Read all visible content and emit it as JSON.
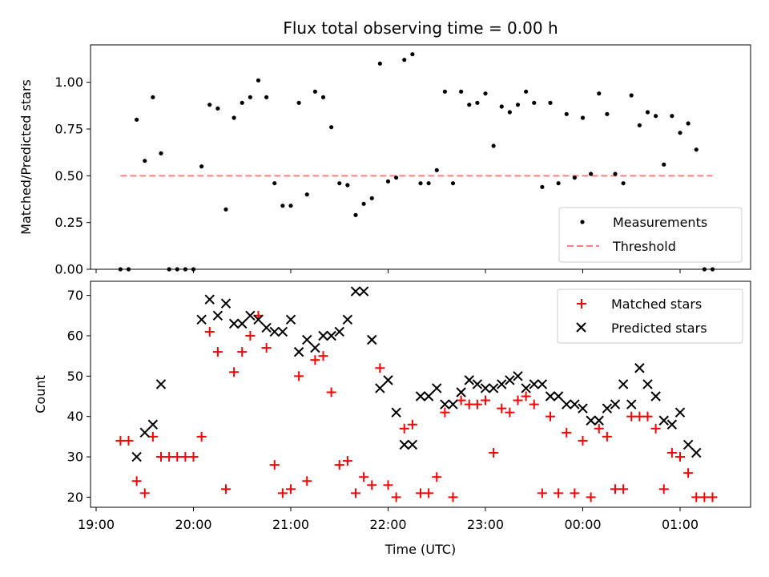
{
  "chart_data": [
    {
      "type": "scatter",
      "title": "Flux total observing time = 0.00 h",
      "xlabel": "",
      "ylabel": "Matched/Predicted stars",
      "xlim": [
        "19:00",
        "01:40"
      ],
      "ylim": [
        0,
        1.2
      ],
      "yticks": [
        "0.00",
        "0.25",
        "0.50",
        "0.75",
        "1.00"
      ],
      "legend": {
        "placement": "lower-right",
        "entries": [
          "Measurements",
          "Threshold"
        ]
      },
      "series": [
        {
          "name": "Measurements",
          "color": "#000000",
          "marker": "dot",
          "points": [
            [
              "19:15",
              0.0
            ],
            [
              "19:20",
              0.0
            ],
            [
              "19:25",
              0.8
            ],
            [
              "19:30",
              0.58
            ],
            [
              "19:35",
              0.92
            ],
            [
              "19:40",
              0.62
            ],
            [
              "19:45",
              0.0
            ],
            [
              "19:50",
              0.0
            ],
            [
              "19:55",
              0.0
            ],
            [
              "20:00",
              0.0
            ],
            [
              "20:05",
              0.55
            ],
            [
              "20:10",
              0.88
            ],
            [
              "20:15",
              0.86
            ],
            [
              "20:20",
              0.32
            ],
            [
              "20:25",
              0.81
            ],
            [
              "20:30",
              0.89
            ],
            [
              "20:35",
              0.92
            ],
            [
              "20:40",
              1.01
            ],
            [
              "20:45",
              0.92
            ],
            [
              "20:50",
              0.46
            ],
            [
              "20:55",
              0.34
            ],
            [
              "21:00",
              0.34
            ],
            [
              "21:05",
              0.89
            ],
            [
              "21:10",
              0.4
            ],
            [
              "21:15",
              0.95
            ],
            [
              "21:20",
              0.92
            ],
            [
              "21:25",
              0.76
            ],
            [
              "21:30",
              0.46
            ],
            [
              "21:35",
              0.45
            ],
            [
              "21:40",
              0.29
            ],
            [
              "21:45",
              0.35
            ],
            [
              "21:50",
              0.38
            ],
            [
              "21:55",
              1.1
            ],
            [
              "22:00",
              0.47
            ],
            [
              "22:05",
              0.49
            ],
            [
              "22:10",
              1.12
            ],
            [
              "22:15",
              1.15
            ],
            [
              "22:20",
              0.46
            ],
            [
              "22:25",
              0.46
            ],
            [
              "22:30",
              0.53
            ],
            [
              "22:35",
              0.95
            ],
            [
              "22:40",
              0.46
            ],
            [
              "22:45",
              0.95
            ],
            [
              "22:50",
              0.88
            ],
            [
              "22:55",
              0.89
            ],
            [
              "23:00",
              0.94
            ],
            [
              "23:05",
              0.66
            ],
            [
              "23:10",
              0.87
            ],
            [
              "23:15",
              0.84
            ],
            [
              "23:20",
              0.88
            ],
            [
              "23:25",
              0.95
            ],
            [
              "23:30",
              0.89
            ],
            [
              "23:35",
              0.44
            ],
            [
              "23:40",
              0.89
            ],
            [
              "23:45",
              0.46
            ],
            [
              "23:50",
              0.83
            ],
            [
              "23:55",
              0.49
            ],
            [
              "00:00",
              0.81
            ],
            [
              "00:05",
              0.51
            ],
            [
              "00:10",
              0.94
            ],
            [
              "00:15",
              0.83
            ],
            [
              "00:20",
              0.51
            ],
            [
              "00:25",
              0.46
            ],
            [
              "00:30",
              0.93
            ],
            [
              "00:35",
              0.77
            ],
            [
              "00:40",
              0.84
            ],
            [
              "00:45",
              0.82
            ],
            [
              "00:50",
              0.56
            ],
            [
              "00:55",
              0.82
            ],
            [
              "01:00",
              0.73
            ],
            [
              "01:05",
              0.78
            ],
            [
              "01:10",
              0.64
            ],
            [
              "01:15",
              0.0
            ],
            [
              "01:20",
              0.0
            ]
          ]
        },
        {
          "name": "Threshold",
          "color": "#ff7f7f",
          "style": "dashed",
          "points": [
            [
              "19:15",
              0.5
            ],
            [
              "01:20",
              0.5
            ]
          ]
        }
      ]
    },
    {
      "type": "scatter",
      "title": "",
      "xlabel": "Time (UTC)",
      "ylabel": "Count",
      "xlim": [
        "19:00",
        "01:40"
      ],
      "ylim": [
        17.5,
        73.5
      ],
      "xticks": [
        "19:00",
        "20:00",
        "21:00",
        "22:00",
        "23:00",
        "00:00",
        "01:00"
      ],
      "yticks": [
        "20",
        "30",
        "40",
        "50",
        "60",
        "70"
      ],
      "legend": {
        "placement": "upper-right",
        "entries": [
          "Matched stars",
          "Predicted stars"
        ]
      },
      "series": [
        {
          "name": "Matched stars",
          "color": "#ff0000",
          "marker": "plus",
          "points": [
            [
              "19:15",
              34
            ],
            [
              "19:20",
              34
            ],
            [
              "19:25",
              24
            ],
            [
              "19:30",
              21
            ],
            [
              "19:35",
              35
            ],
            [
              "19:40",
              30
            ],
            [
              "19:45",
              30
            ],
            [
              "19:50",
              30
            ],
            [
              "19:55",
              30
            ],
            [
              "20:00",
              30
            ],
            [
              "20:05",
              35
            ],
            [
              "20:10",
              61
            ],
            [
              "20:15",
              56
            ],
            [
              "20:20",
              22
            ],
            [
              "20:25",
              51
            ],
            [
              "20:30",
              56
            ],
            [
              "20:35",
              60
            ],
            [
              "20:40",
              65
            ],
            [
              "20:45",
              57
            ],
            [
              "20:50",
              28
            ],
            [
              "20:55",
              21
            ],
            [
              "21:00",
              22
            ],
            [
              "21:05",
              50
            ],
            [
              "21:10",
              24
            ],
            [
              "21:15",
              54
            ],
            [
              "21:20",
              55
            ],
            [
              "21:25",
              46
            ],
            [
              "21:30",
              28
            ],
            [
              "21:35",
              29
            ],
            [
              "21:40",
              21
            ],
            [
              "21:45",
              25
            ],
            [
              "21:50",
              23
            ],
            [
              "21:55",
              52
            ],
            [
              "22:00",
              23
            ],
            [
              "22:05",
              20
            ],
            [
              "22:10",
              37
            ],
            [
              "22:15",
              38
            ],
            [
              "22:20",
              21
            ],
            [
              "22:25",
              21
            ],
            [
              "22:30",
              25
            ],
            [
              "22:35",
              41
            ],
            [
              "22:40",
              20
            ],
            [
              "22:45",
              44
            ],
            [
              "22:50",
              43
            ],
            [
              "22:55",
              43
            ],
            [
              "23:00",
              44
            ],
            [
              "23:05",
              31
            ],
            [
              "23:10",
              42
            ],
            [
              "23:15",
              41
            ],
            [
              "23:20",
              44
            ],
            [
              "23:25",
              45
            ],
            [
              "23:30",
              43
            ],
            [
              "23:35",
              21
            ],
            [
              "23:40",
              40
            ],
            [
              "23:45",
              21
            ],
            [
              "23:50",
              36
            ],
            [
              "23:55",
              21
            ],
            [
              "00:00",
              34
            ],
            [
              "00:05",
              20
            ],
            [
              "00:10",
              37
            ],
            [
              "00:15",
              35
            ],
            [
              "00:20",
              22
            ],
            [
              "00:25",
              22
            ],
            [
              "00:30",
              40
            ],
            [
              "00:35",
              40
            ],
            [
              "00:40",
              40
            ],
            [
              "00:45",
              37
            ],
            [
              "00:50",
              22
            ],
            [
              "00:55",
              31
            ],
            [
              "01:00",
              30
            ],
            [
              "01:05",
              26
            ],
            [
              "01:10",
              20
            ],
            [
              "01:15",
              20
            ],
            [
              "01:20",
              20
            ]
          ]
        },
        {
          "name": "Predicted stars",
          "color": "#000000",
          "marker": "x",
          "points": [
            [
              "19:25",
              30
            ],
            [
              "19:30",
              36
            ],
            [
              "19:35",
              38
            ],
            [
              "19:40",
              48
            ],
            [
              "20:05",
              64
            ],
            [
              "20:10",
              69
            ],
            [
              "20:15",
              65
            ],
            [
              "20:20",
              68
            ],
            [
              "20:25",
              63
            ],
            [
              "20:30",
              63
            ],
            [
              "20:35",
              65
            ],
            [
              "20:40",
              64
            ],
            [
              "20:45",
              62
            ],
            [
              "20:50",
              61
            ],
            [
              "20:55",
              61
            ],
            [
              "21:00",
              64
            ],
            [
              "21:05",
              56
            ],
            [
              "21:10",
              59
            ],
            [
              "21:15",
              57
            ],
            [
              "21:20",
              60
            ],
            [
              "21:25",
              60
            ],
            [
              "21:30",
              61
            ],
            [
              "21:35",
              64
            ],
            [
              "21:40",
              71
            ],
            [
              "21:45",
              71
            ],
            [
              "21:50",
              59
            ],
            [
              "21:55",
              47
            ],
            [
              "22:00",
              49
            ],
            [
              "22:05",
              41
            ],
            [
              "22:10",
              33
            ],
            [
              "22:15",
              33
            ],
            [
              "22:20",
              45
            ],
            [
              "22:25",
              45
            ],
            [
              "22:30",
              47
            ],
            [
              "22:35",
              43
            ],
            [
              "22:40",
              43
            ],
            [
              "22:45",
              46
            ],
            [
              "22:50",
              49
            ],
            [
              "22:55",
              48
            ],
            [
              "23:00",
              47
            ],
            [
              "23:05",
              47
            ],
            [
              "23:10",
              48
            ],
            [
              "23:15",
              49
            ],
            [
              "23:20",
              50
            ],
            [
              "23:25",
              47
            ],
            [
              "23:30",
              48
            ],
            [
              "23:35",
              48
            ],
            [
              "23:40",
              45
            ],
            [
              "23:45",
              45
            ],
            [
              "23:50",
              43
            ],
            [
              "23:55",
              43
            ],
            [
              "00:00",
              42
            ],
            [
              "00:05",
              39
            ],
            [
              "00:10",
              39
            ],
            [
              "00:15",
              42
            ],
            [
              "00:20",
              43
            ],
            [
              "00:25",
              48
            ],
            [
              "00:30",
              43
            ],
            [
              "00:35",
              52
            ],
            [
              "00:40",
              48
            ],
            [
              "00:45",
              45
            ],
            [
              "00:50",
              39
            ],
            [
              "00:55",
              38
            ],
            [
              "01:00",
              41
            ],
            [
              "01:05",
              33
            ],
            [
              "01:10",
              31
            ]
          ]
        }
      ]
    }
  ]
}
